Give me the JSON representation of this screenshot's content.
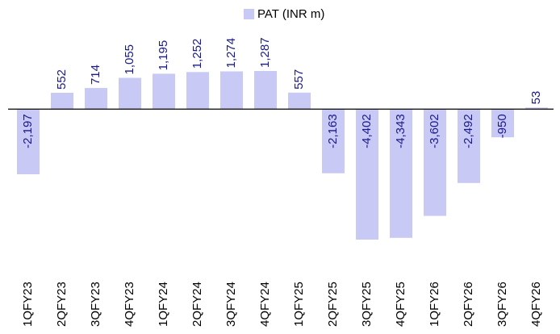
{
  "chart_data": {
    "type": "bar",
    "legend": "PAT (INR m)",
    "categories": [
      "1QFY23",
      "2QFY23",
      "3QFY23",
      "4QFY23",
      "1QFY24",
      "2QFY24",
      "3QFY24",
      "4QFY24",
      "1QFY25",
      "2QFY25",
      "3QFY25",
      "4QFY25",
      "1QFY26",
      "2QFY26",
      "3QFY26",
      "4QFY26"
    ],
    "values": [
      -2197,
      552,
      714,
      1055,
      1195,
      1252,
      1274,
      1287,
      557,
      -2163,
      -4402,
      -4343,
      -3602,
      -2492,
      -950,
      53
    ],
    "value_labels": [
      "-2,197",
      "552",
      "714",
      "1,055",
      "1,195",
      "1,252",
      "1,274",
      "1,287",
      "557",
      "-2,163",
      "-4,402",
      "-4,343",
      "-3,602",
      "-2,492",
      "-950",
      "53"
    ],
    "color": "#c9c9f6",
    "label_color": "#1a1a8c"
  }
}
